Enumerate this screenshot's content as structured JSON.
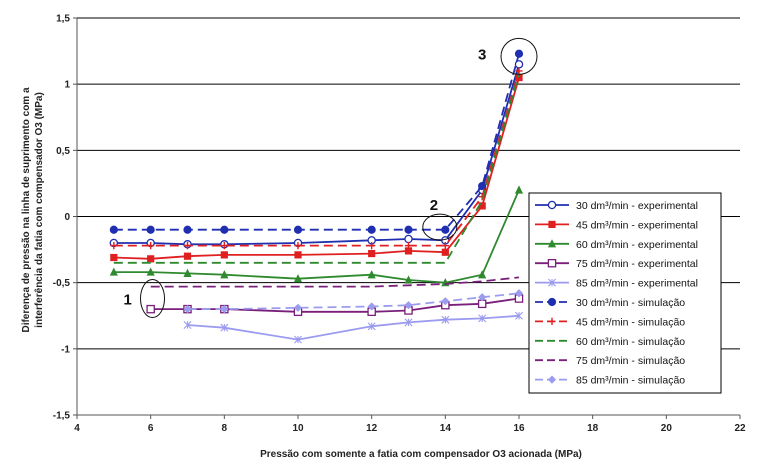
{
  "chart_data": {
    "type": "line",
    "title": "",
    "xlabel": "Pressão com somente a fatia com compensador O3 acionada (MPa)",
    "ylabel_lines": [
      "Diferença de pressão na linha de suprimento com a",
      "interferência da fatia com compensador O3 (MPa)"
    ],
    "xlim": [
      4,
      22
    ],
    "ylim": [
      -1.5,
      1.5
    ],
    "xticks": [
      4,
      6,
      8,
      10,
      12,
      14,
      16,
      18,
      20,
      22
    ],
    "yticks": [
      -1.5,
      -1,
      -0.5,
      0,
      0.5,
      1,
      1.5
    ],
    "ytick_labels": [
      "-1,5",
      "-1",
      "-0,5",
      "0",
      "0,5",
      "1",
      "1,5"
    ],
    "grid": "horizontal",
    "legend_position": "right",
    "annotations": [
      "1",
      "2",
      "3"
    ],
    "series": [
      {
        "name": "30 dm³/min - experimental",
        "color": "#1f2fb0",
        "dash": false,
        "marker": "circle-open",
        "x": [
          5,
          6,
          7,
          8,
          10,
          12,
          13,
          14,
          15,
          16
        ],
        "y": [
          -0.2,
          -0.2,
          -0.21,
          -0.21,
          -0.2,
          -0.18,
          -0.17,
          -0.18,
          0.2,
          1.15
        ]
      },
      {
        "name": "45 dm³/min - experimental",
        "color": "#e02020",
        "dash": false,
        "marker": "square-filled",
        "x": [
          5,
          6,
          7,
          8,
          10,
          12,
          13,
          14,
          15,
          16
        ],
        "y": [
          -0.31,
          -0.32,
          -0.3,
          -0.29,
          -0.29,
          -0.28,
          -0.26,
          -0.27,
          0.08,
          1.05
        ]
      },
      {
        "name": "60 dm³/min - experimental",
        "color": "#2f8a2f",
        "dash": false,
        "marker": "triangle-filled",
        "x": [
          5,
          6,
          7,
          8,
          10,
          12,
          13,
          14,
          15,
          16
        ],
        "y": [
          -0.42,
          -0.42,
          -0.43,
          -0.44,
          -0.47,
          -0.44,
          -0.48,
          -0.5,
          -0.44,
          0.2
        ]
      },
      {
        "name": "75 dm³/min - experimental",
        "color": "#7a1f7a",
        "dash": false,
        "marker": "square-open",
        "x": [
          6,
          7,
          8,
          10,
          12,
          13,
          14,
          15,
          16
        ],
        "y": [
          -0.7,
          -0.7,
          -0.7,
          -0.72,
          -0.72,
          -0.71,
          -0.67,
          -0.66,
          -0.62
        ]
      },
      {
        "name": "85 dm³/min - experimental",
        "color": "#9b9bf0",
        "dash": false,
        "marker": "star",
        "x": [
          7,
          8,
          10,
          12,
          13,
          14,
          15,
          16
        ],
        "y": [
          -0.82,
          -0.84,
          -0.93,
          -0.83,
          -0.8,
          -0.78,
          -0.77,
          -0.75
        ]
      },
      {
        "name": "30 dm³/min - simulação",
        "color": "#1f2fb0",
        "dash": true,
        "marker": "circle-filled",
        "x": [
          5,
          6,
          7,
          8,
          10,
          12,
          13,
          14,
          15,
          16
        ],
        "y": [
          -0.1,
          -0.1,
          -0.1,
          -0.1,
          -0.1,
          -0.1,
          -0.1,
          -0.1,
          0.23,
          1.23
        ]
      },
      {
        "name": "45 dm³/min - simulação",
        "color": "#e02020",
        "dash": true,
        "marker": "plus",
        "x": [
          5,
          6,
          7,
          8,
          10,
          12,
          13,
          14,
          15,
          16
        ],
        "y": [
          -0.22,
          -0.22,
          -0.22,
          -0.22,
          -0.22,
          -0.22,
          -0.22,
          -0.22,
          0.15,
          1.1
        ]
      },
      {
        "name": "60 dm³/min - simulação",
        "color": "#2f8a2f",
        "dash": true,
        "marker": "none",
        "x": [
          5,
          6,
          7,
          8,
          10,
          12,
          13,
          14,
          15,
          16
        ],
        "y": [
          -0.35,
          -0.35,
          -0.35,
          -0.35,
          -0.35,
          -0.35,
          -0.35,
          -0.35,
          0.12,
          1.08
        ]
      },
      {
        "name": "75 dm³/min - simulação",
        "color": "#7a1f7a",
        "dash": true,
        "marker": "none",
        "x": [
          6,
          7,
          8,
          10,
          12,
          13,
          14,
          15,
          16
        ],
        "y": [
          -0.53,
          -0.53,
          -0.53,
          -0.53,
          -0.53,
          -0.52,
          -0.51,
          -0.49,
          -0.46
        ]
      },
      {
        "name": "85 dm³/min - simulação",
        "color": "#9b9bf0",
        "dash": true,
        "marker": "diamond-filled",
        "x": [
          7,
          8,
          10,
          12,
          13,
          14,
          15,
          16
        ],
        "y": [
          -0.7,
          -0.7,
          -0.69,
          -0.68,
          -0.67,
          -0.64,
          -0.61,
          -0.58
        ]
      }
    ]
  }
}
